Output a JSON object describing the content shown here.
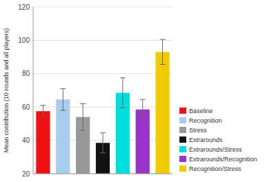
{
  "chart_data": {
    "type": "bar",
    "categories": [
      "Baseline",
      "Recognition",
      "Stress",
      "Extrarounds",
      "Extrarounds/Stress",
      "Extrarounds/Recognition",
      "Recognition/Stress"
    ],
    "values": [
      57.5,
      64.5,
      54.0,
      38.5,
      68.5,
      58.5,
      93.0
    ],
    "errors": [
      3.5,
      6.5,
      8.0,
      6.0,
      9.0,
      6.0,
      7.5
    ],
    "colors": [
      "#ee1111",
      "#aaccee",
      "#999999",
      "#111111",
      "#00dddd",
      "#9933cc",
      "#eecc00"
    ],
    "ylabel": "Mean contribution (10 rounds and all players)",
    "ylim": [
      20,
      120
    ],
    "yticks": [
      20,
      40,
      60,
      80,
      100,
      120
    ],
    "grid": true,
    "legend": "lower right",
    "tick_labels": "y"
  }
}
